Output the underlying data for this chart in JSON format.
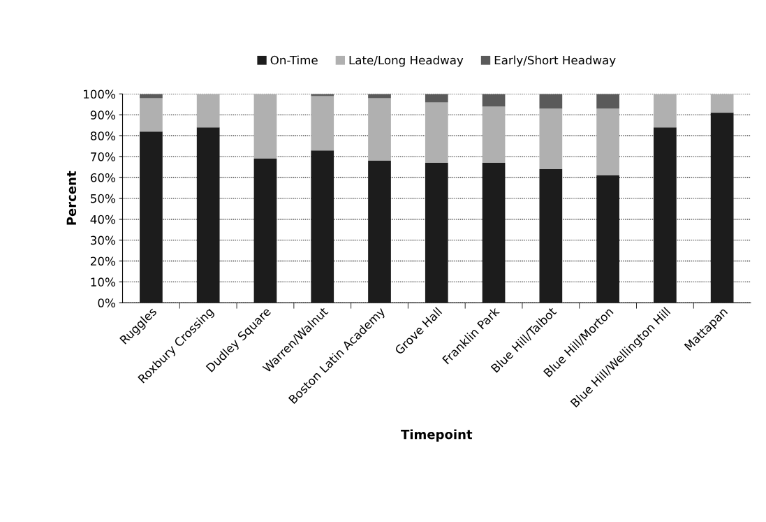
{
  "chart_data": {
    "type": "bar",
    "stacked": true,
    "xlabel": "Timepoint",
    "ylabel": "Percent",
    "categories": [
      "Ruggles",
      "Roxbury Crossing",
      "Dudley Square",
      "Warren/Walnut",
      "Boston Latin Academy",
      "Grove Hall",
      "Franklin Park",
      "Blue Hill/Talbot",
      "Blue Hill/Morton",
      "Blue Hill/Wellington Hill",
      "Mattapan"
    ],
    "series": [
      {
        "name": "On-Time",
        "color": "#1c1c1c",
        "values": [
          82,
          84,
          69,
          73,
          68,
          67,
          67,
          64,
          61,
          84,
          91
        ]
      },
      {
        "name": "Late/Long Headway",
        "color": "#b0b0b0",
        "values": [
          16,
          16,
          31,
          26,
          30,
          29,
          27,
          29,
          32,
          16,
          9
        ]
      },
      {
        "name": "Early/Short Headway",
        "color": "#5a5a5a",
        "values": [
          2,
          0,
          0,
          1,
          2,
          4,
          6,
          7,
          7,
          0,
          0
        ]
      }
    ],
    "ylim": [
      0,
      100
    ],
    "yticks": [
      {
        "value": 0,
        "label": "0%"
      },
      {
        "value": 10,
        "label": "10%"
      },
      {
        "value": 20,
        "label": "20%"
      },
      {
        "value": 30,
        "label": "30%"
      },
      {
        "value": 40,
        "label": "40%"
      },
      {
        "value": 50,
        "label": "50%"
      },
      {
        "value": 60,
        "label": "60%"
      },
      {
        "value": 70,
        "label": "70%"
      },
      {
        "value": 80,
        "label": "80%"
      },
      {
        "value": 90,
        "label": "90%"
      },
      {
        "value": 100,
        "label": "100%"
      }
    ],
    "grid": "y",
    "legend": "top"
  }
}
